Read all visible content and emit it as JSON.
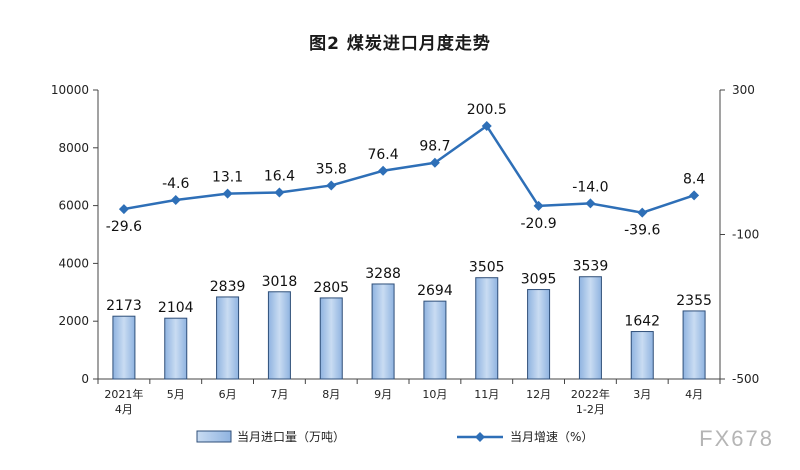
{
  "watermark": "FX678",
  "chart_data": {
    "type": "bar+line",
    "title": "图2  煤炭进口月度走势",
    "categories": [
      [
        "2021年",
        "4月"
      ],
      [
        "5月"
      ],
      [
        "6月"
      ],
      [
        "7月"
      ],
      [
        "8月"
      ],
      [
        "9月"
      ],
      [
        "10月"
      ],
      [
        "11月"
      ],
      [
        "12月"
      ],
      [
        "2022年",
        "1-2月"
      ],
      [
        "3月"
      ],
      [
        "4月"
      ]
    ],
    "series": [
      {
        "name": "当月进口量（万吨）",
        "type": "bar",
        "axis": "left",
        "values": [
          2173,
          2104,
          2839,
          3018,
          2805,
          3288,
          2694,
          3505,
          3095,
          3539,
          1642,
          2355
        ],
        "labels": [
          "2173",
          "2104",
          "2839",
          "3018",
          "2805",
          "3288",
          "2694",
          "3505",
          "3095",
          "3539",
          "1642",
          "2355"
        ]
      },
      {
        "name": "当月增速（%）",
        "type": "line",
        "axis": "right",
        "values": [
          -29.6,
          -4.6,
          13.1,
          16.4,
          35.8,
          76.4,
          98.7,
          200.5,
          -20.9,
          -14.0,
          -39.6,
          8.4
        ],
        "labels": [
          "-29.6",
          "-4.6",
          "13.1",
          "16.4",
          "35.8",
          "76.4",
          "98.7",
          "200.5",
          "-20.9",
          "-14.0",
          "-39.6",
          "8.4"
        ]
      }
    ],
    "y_left": {
      "range": [
        0,
        10000
      ],
      "ticks": [
        "0",
        "2000",
        "4000",
        "6000",
        "8000",
        "10000"
      ]
    },
    "y_right": {
      "range": [
        -500,
        300
      ],
      "ticks": [
        "-500",
        "-100",
        "300"
      ]
    },
    "grid": false,
    "legend_position": "bottom",
    "colors": {
      "bar_fill_light": "#c9dcf2",
      "bar_fill_dark": "#8fb3e0",
      "bar_stroke": "#2f4f79",
      "line": "#2e6fb7",
      "axis": "#444444"
    }
  }
}
